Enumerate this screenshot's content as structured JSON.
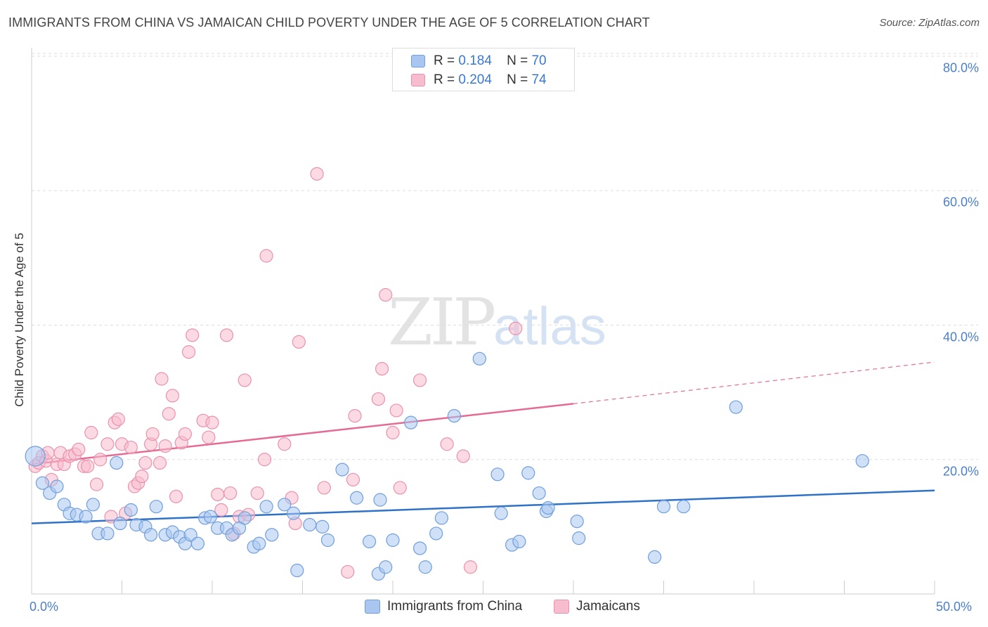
{
  "header": {
    "title": "IMMIGRANTS FROM CHINA VS JAMAICAN CHILD POVERTY UNDER THE AGE OF 5 CORRELATION CHART",
    "source": "Source: ZipAtlas.com"
  },
  "watermark": {
    "zip": "ZIP",
    "atlas": "atlas"
  },
  "legend": {
    "rows": [
      {
        "r_label": "R =",
        "r_value": "0.184",
        "n_label": "N =",
        "n_value": "70"
      },
      {
        "r_label": "R =",
        "r_value": "0.204",
        "n_label": "N =",
        "n_value": "74"
      }
    ]
  },
  "colors": {
    "china_fill": "#a9c6f0",
    "china_stroke": "#6f9fdc",
    "china_line": "#2f72c8",
    "jamaica_fill": "#f7bccd",
    "jamaica_stroke": "#ea92ad",
    "jamaica_line": "#e56b93",
    "grid": "#dddddd",
    "tick_text": "#4a7fcc"
  },
  "chart_data": {
    "type": "scatter",
    "ylabel": "Child Poverty Under the Age of 5",
    "xlim": [
      0,
      50
    ],
    "ylim": [
      0,
      80
    ],
    "x_tick_labels": [
      "0.0%",
      "50.0%"
    ],
    "y_ticks": [
      {
        "value": 80,
        "label": "80.0%"
      },
      {
        "value": 60,
        "label": "60.0%"
      },
      {
        "value": 40,
        "label": "40.0%"
      },
      {
        "value": 20,
        "label": "20.0%"
      }
    ],
    "grid": "horizontal dashed",
    "series": [
      {
        "name": "Immigrants from China",
        "trend": {
          "x0": 0,
          "y0": 10.5,
          "x1": 50,
          "y1": 15.4
        },
        "points": [
          [
            0.2,
            20.5
          ],
          [
            0.6,
            16.5
          ],
          [
            1.0,
            15.0
          ],
          [
            1.4,
            16.0
          ],
          [
            1.8,
            13.3
          ],
          [
            2.1,
            12.0
          ],
          [
            2.5,
            11.8
          ],
          [
            3.0,
            11.5
          ],
          [
            3.4,
            13.3
          ],
          [
            3.7,
            9.0
          ],
          [
            4.2,
            9.0
          ],
          [
            4.7,
            19.5
          ],
          [
            4.9,
            10.5
          ],
          [
            5.5,
            12.5
          ],
          [
            5.8,
            10.3
          ],
          [
            6.3,
            10.0
          ],
          [
            6.6,
            8.8
          ],
          [
            6.9,
            13.0
          ],
          [
            7.4,
            8.8
          ],
          [
            7.8,
            9.2
          ],
          [
            8.2,
            8.5
          ],
          [
            8.5,
            7.5
          ],
          [
            8.8,
            8.8
          ],
          [
            9.2,
            7.5
          ],
          [
            9.6,
            11.3
          ],
          [
            9.9,
            11.5
          ],
          [
            10.3,
            9.8
          ],
          [
            10.8,
            9.8
          ],
          [
            11.1,
            8.8
          ],
          [
            11.5,
            9.8
          ],
          [
            11.8,
            11.3
          ],
          [
            12.3,
            7.0
          ],
          [
            12.6,
            7.5
          ],
          [
            13.0,
            13.0
          ],
          [
            13.3,
            8.8
          ],
          [
            14.0,
            13.3
          ],
          [
            14.5,
            12.0
          ],
          [
            14.7,
            3.5
          ],
          [
            15.4,
            10.3
          ],
          [
            16.1,
            10.0
          ],
          [
            16.4,
            8.0
          ],
          [
            17.2,
            18.5
          ],
          [
            18.0,
            14.3
          ],
          [
            18.7,
            7.8
          ],
          [
            19.2,
            3.0
          ],
          [
            19.3,
            14.0
          ],
          [
            19.6,
            4.0
          ],
          [
            20.0,
            8.0
          ],
          [
            21.0,
            25.5
          ],
          [
            21.5,
            6.8
          ],
          [
            21.8,
            4.0
          ],
          [
            22.4,
            9.0
          ],
          [
            22.7,
            11.3
          ],
          [
            23.4,
            26.5
          ],
          [
            24.8,
            35.0
          ],
          [
            25.8,
            17.8
          ],
          [
            26.0,
            12.0
          ],
          [
            26.6,
            7.3
          ],
          [
            27.0,
            7.8
          ],
          [
            27.5,
            18.0
          ],
          [
            28.1,
            15.0
          ],
          [
            28.5,
            12.3
          ],
          [
            28.6,
            12.8
          ],
          [
            30.2,
            10.8
          ],
          [
            30.3,
            8.3
          ],
          [
            34.5,
            5.5
          ],
          [
            35.0,
            13.0
          ],
          [
            36.1,
            13.0
          ],
          [
            39.0,
            27.8
          ],
          [
            46.0,
            19.8
          ]
        ]
      },
      {
        "name": "Jamaicans",
        "trend": {
          "x0": 0,
          "y0": 19.3,
          "x1": 30,
          "y1": 28.3,
          "dash_to_x": 50,
          "dash_to_y": 34.5
        },
        "points": [
          [
            0.2,
            19.0
          ],
          [
            0.4,
            19.5
          ],
          [
            0.6,
            20.5
          ],
          [
            0.8,
            19.8
          ],
          [
            0.9,
            21.0
          ],
          [
            1.1,
            17.0
          ],
          [
            1.4,
            19.3
          ],
          [
            1.6,
            21.0
          ],
          [
            1.8,
            19.3
          ],
          [
            2.1,
            20.5
          ],
          [
            2.4,
            20.8
          ],
          [
            2.6,
            21.5
          ],
          [
            2.9,
            19.0
          ],
          [
            3.1,
            19.0
          ],
          [
            3.3,
            24.0
          ],
          [
            3.6,
            16.3
          ],
          [
            3.8,
            20.0
          ],
          [
            4.2,
            22.3
          ],
          [
            4.4,
            11.5
          ],
          [
            4.6,
            25.5
          ],
          [
            4.8,
            26.0
          ],
          [
            5.0,
            22.3
          ],
          [
            5.2,
            12.0
          ],
          [
            5.5,
            21.8
          ],
          [
            5.7,
            16.0
          ],
          [
            5.9,
            16.5
          ],
          [
            6.1,
            17.5
          ],
          [
            6.3,
            19.5
          ],
          [
            6.6,
            22.3
          ],
          [
            6.7,
            23.8
          ],
          [
            7.1,
            19.5
          ],
          [
            7.2,
            32.0
          ],
          [
            7.4,
            22.0
          ],
          [
            7.6,
            26.8
          ],
          [
            7.8,
            29.5
          ],
          [
            8.0,
            14.5
          ],
          [
            8.3,
            22.5
          ],
          [
            8.5,
            23.8
          ],
          [
            8.7,
            36.0
          ],
          [
            8.9,
            38.5
          ],
          [
            9.5,
            25.8
          ],
          [
            9.8,
            23.3
          ],
          [
            10.0,
            25.5
          ],
          [
            10.3,
            14.8
          ],
          [
            10.5,
            12.5
          ],
          [
            10.8,
            38.5
          ],
          [
            11.0,
            15.0
          ],
          [
            11.2,
            9.0
          ],
          [
            11.5,
            11.5
          ],
          [
            11.8,
            31.8
          ],
          [
            12.0,
            11.8
          ],
          [
            12.5,
            15.0
          ],
          [
            12.9,
            20.0
          ],
          [
            13.0,
            50.3
          ],
          [
            14.0,
            22.3
          ],
          [
            14.4,
            14.3
          ],
          [
            14.6,
            10.5
          ],
          [
            14.8,
            37.5
          ],
          [
            15.8,
            62.5
          ],
          [
            16.2,
            15.8
          ],
          [
            17.5,
            3.3
          ],
          [
            17.8,
            17.0
          ],
          [
            17.9,
            26.5
          ],
          [
            19.2,
            29.0
          ],
          [
            19.4,
            33.5
          ],
          [
            19.6,
            44.5
          ],
          [
            20.0,
            24.0
          ],
          [
            20.2,
            27.3
          ],
          [
            20.4,
            15.8
          ],
          [
            21.5,
            31.8
          ],
          [
            23.0,
            22.3
          ],
          [
            23.9,
            20.5
          ],
          [
            24.3,
            4.0
          ],
          [
            26.8,
            39.5
          ]
        ]
      }
    ]
  }
}
